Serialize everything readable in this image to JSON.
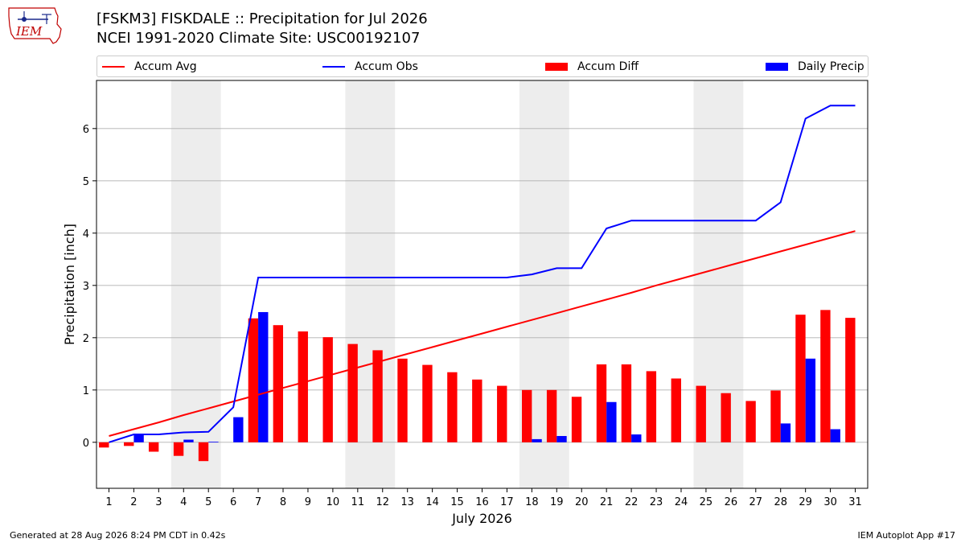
{
  "header": {
    "title_line1": "[FSKM3] FISKDALE :: Precipitation for Jul 2026",
    "title_line2": "NCEI 1991-2020 Climate Site: USC00192107",
    "logo_text": "IEM"
  },
  "legend": {
    "accum_avg": "Accum Avg",
    "accum_obs": "Accum Obs",
    "accum_diff": "Accum Diff",
    "daily_precip": "Daily Precip"
  },
  "footer": {
    "generated": "Generated at 28 Aug 2026 8:24 PM CDT in 0.42s",
    "app": "IEM Autoplot App #17"
  },
  "colors": {
    "accum_avg": "#ff0000",
    "accum_obs": "#0000ff",
    "accum_diff": "#ff0000",
    "daily_precip": "#0000ff",
    "weekend_shade": "#ededed",
    "grid": "#b0b0b0"
  },
  "chart_data": {
    "type": "bar",
    "xlabel": "July 2026",
    "ylabel": "Precipitation [inch]",
    "xlim": [
      0.5,
      31.5
    ],
    "ylim": [
      -0.88,
      6.92
    ],
    "yticks": [
      0,
      1,
      2,
      3,
      4,
      5,
      6
    ],
    "categories": [
      1,
      2,
      3,
      4,
      5,
      6,
      7,
      8,
      9,
      10,
      11,
      12,
      13,
      14,
      15,
      16,
      17,
      18,
      19,
      20,
      21,
      22,
      23,
      24,
      25,
      26,
      27,
      28,
      29,
      30,
      31
    ],
    "weekend_spans": [
      [
        3.5,
        5.5
      ],
      [
        10.5,
        12.5
      ],
      [
        17.5,
        19.5
      ],
      [
        24.5,
        26.5
      ]
    ],
    "grid": "horizontal",
    "legend_position": "top",
    "series": [
      {
        "name": "Accum Avg",
        "kind": "line",
        "values": [
          0.12,
          0.25,
          0.38,
          0.52,
          0.65,
          0.78,
          0.91,
          1.04,
          1.17,
          1.3,
          1.43,
          1.56,
          1.69,
          1.82,
          1.95,
          2.08,
          2.21,
          2.34,
          2.47,
          2.6,
          2.73,
          2.86,
          3.0,
          3.13,
          3.26,
          3.39,
          3.52,
          3.65,
          3.78,
          3.91,
          4.04
        ]
      },
      {
        "name": "Accum Obs",
        "kind": "line",
        "values": [
          0.0,
          0.15,
          0.15,
          0.19,
          0.2,
          0.67,
          3.15,
          3.15,
          3.15,
          3.15,
          3.15,
          3.15,
          3.15,
          3.15,
          3.15,
          3.15,
          3.15,
          3.21,
          3.33,
          3.33,
          4.09,
          4.24,
          4.24,
          4.24,
          4.24,
          4.24,
          4.24,
          4.59,
          6.19,
          6.44,
          6.44
        ]
      },
      {
        "name": "Accum Diff",
        "kind": "bar",
        "values": [
          -0.1,
          -0.07,
          -0.18,
          -0.26,
          -0.36,
          0.0,
          2.37,
          2.24,
          2.12,
          2.01,
          1.88,
          1.76,
          1.6,
          1.48,
          1.34,
          1.2,
          1.08,
          1.0,
          1.0,
          0.87,
          1.49,
          1.49,
          1.36,
          1.22,
          1.08,
          0.94,
          0.79,
          0.99,
          2.44,
          2.53,
          2.38
        ]
      },
      {
        "name": "Daily Precip",
        "kind": "bar",
        "values": [
          0.0,
          0.15,
          0.0,
          0.05,
          0.01,
          0.48,
          2.49,
          0.0,
          0.0,
          0.0,
          0.0,
          0.0,
          0.0,
          0.0,
          0.0,
          0.0,
          0.0,
          0.06,
          0.12,
          0.0,
          0.77,
          0.15,
          0.0,
          0.0,
          0.0,
          0.0,
          0.0,
          0.36,
          1.6,
          0.25,
          0.0
        ]
      }
    ]
  }
}
